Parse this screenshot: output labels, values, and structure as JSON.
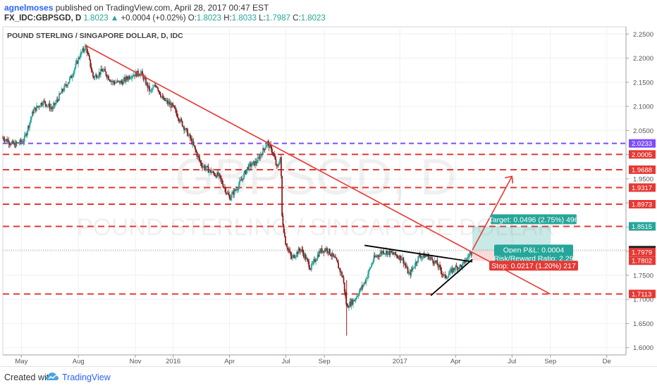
{
  "header": {
    "author": "agnelmoses",
    "published": "published on TradingView.com, April 28, 2017 00:47 EST",
    "symbol": "FX_IDC:GBPSGD, D",
    "last": "1.8023",
    "change_arrow": "▲",
    "change": "+0.0004 (+0.02%)",
    "o_label": "O:",
    "o_value": "1.8023",
    "h_label": "H:",
    "h_value": "1.8033",
    "l_label": "L:",
    "l_value": "1.7987",
    "c_label": "C:",
    "c_value": "1.8023"
  },
  "footer": {
    "created_with": "Created with",
    "brand": "TradingView"
  },
  "chart_data": {
    "type": "candlestick",
    "title": "POUND STERLING / SINGAPORE DOLLAR, D, IDC",
    "watermark_symbol": "GBPSGD, D",
    "watermark_name": "POUND STERLING / SINGAPORE DOLLAR",
    "y_ticks": [
      1.6,
      1.65,
      1.7,
      1.75,
      1.8,
      1.85,
      1.9,
      1.95,
      2.0,
      2.05,
      2.1,
      2.15,
      2.2,
      2.25
    ],
    "y_tick_labels": [
      "1.6000",
      "1.6500",
      "1.7000",
      "1.7500",
      "1.8000",
      "1.8500",
      "1.9000",
      "1.9500",
      "2.0000",
      "2.0500",
      "2.1000",
      "2.1500",
      "2.2000",
      "2.2500"
    ],
    "ylim": [
      1.585,
      2.265
    ],
    "x_range": [
      "2015-04-01",
      "2018-01-01"
    ],
    "x_ticks": [
      {
        "label": "May",
        "date": "2015-05-01"
      },
      {
        "label": "Aug",
        "date": "2015-08-01"
      },
      {
        "label": "Nov",
        "date": "2015-11-01"
      },
      {
        "label": "2016",
        "date": "2016-01-01"
      },
      {
        "label": "Apr",
        "date": "2016-04-01"
      },
      {
        "label": "Jul",
        "date": "2016-07-01"
      },
      {
        "label": "Sep",
        "date": "2016-09-01"
      },
      {
        "label": "2017",
        "date": "2017-01-01"
      },
      {
        "label": "Apr",
        "date": "2017-04-01"
      },
      {
        "label": "Jul",
        "date": "2017-07-01"
      },
      {
        "label": "Sep",
        "date": "2017-09-01"
      },
      {
        "label": "De",
        "date": "2017-12-01"
      }
    ],
    "price_path": [
      [
        "2015-04-01",
        2.035
      ],
      [
        "2015-04-20",
        2.02
      ],
      [
        "2015-05-05",
        2.03
      ],
      [
        "2015-05-20",
        2.09
      ],
      [
        "2015-06-05",
        2.11
      ],
      [
        "2015-06-20",
        2.095
      ],
      [
        "2015-07-05",
        2.13
      ],
      [
        "2015-07-20",
        2.16
      ],
      [
        "2015-08-03",
        2.205
      ],
      [
        "2015-08-13",
        2.225
      ],
      [
        "2015-08-25",
        2.16
      ],
      [
        "2015-09-10",
        2.175
      ],
      [
        "2015-09-25",
        2.15
      ],
      [
        "2015-10-10",
        2.15
      ],
      [
        "2015-10-25",
        2.165
      ],
      [
        "2015-11-10",
        2.17
      ],
      [
        "2015-11-25",
        2.13
      ],
      [
        "2015-12-05",
        2.145
      ],
      [
        "2015-12-15",
        2.115
      ],
      [
        "2015-12-31",
        2.1
      ],
      [
        "2016-01-15",
        2.065
      ],
      [
        "2016-01-30",
        2.03
      ],
      [
        "2016-02-15",
        1.98
      ],
      [
        "2016-03-01",
        1.965
      ],
      [
        "2016-03-15",
        1.955
      ],
      [
        "2016-04-01",
        1.91
      ],
      [
        "2016-04-15",
        1.935
      ],
      [
        "2016-05-01",
        1.975
      ],
      [
        "2016-05-15",
        1.985
      ],
      [
        "2016-06-01",
        2.025
      ],
      [
        "2016-06-10",
        2.005
      ],
      [
        "2016-06-17",
        1.97
      ],
      [
        "2016-06-23",
        2.0
      ],
      [
        "2016-06-24",
        1.88
      ],
      [
        "2016-06-30",
        1.82
      ],
      [
        "2016-07-10",
        1.785
      ],
      [
        "2016-07-25",
        1.805
      ],
      [
        "2016-08-10",
        1.765
      ],
      [
        "2016-08-25",
        1.8
      ],
      [
        "2016-09-05",
        1.805
      ],
      [
        "2016-09-20",
        1.78
      ],
      [
        "2016-10-01",
        1.745
      ],
      [
        "2016-10-07",
        1.685
      ],
      [
        "2016-10-20",
        1.7
      ],
      [
        "2016-11-05",
        1.735
      ],
      [
        "2016-11-20",
        1.785
      ],
      [
        "2016-12-05",
        1.8
      ],
      [
        "2016-12-20",
        1.795
      ],
      [
        "2017-01-05",
        1.785
      ],
      [
        "2017-01-16",
        1.75
      ],
      [
        "2017-02-01",
        1.79
      ],
      [
        "2017-02-15",
        1.79
      ],
      [
        "2017-03-01",
        1.775
      ],
      [
        "2017-03-15",
        1.745
      ],
      [
        "2017-03-30",
        1.765
      ],
      [
        "2017-04-12",
        1.77
      ],
      [
        "2017-04-28",
        1.8023
      ]
    ],
    "annotations": {
      "downtrend_line": {
        "from": [
          "2015-08-13",
          2.226
        ],
        "to": [
          "2017-09-01",
          1.711
        ],
        "color": "#e53935"
      },
      "projection_line": {
        "from": [
          "2017-04-28",
          1.8023
        ],
        "to": [
          "2017-07-01",
          1.955
        ],
        "color": "#e53935"
      },
      "triangle_upper": {
        "from": [
          "2016-11-05",
          1.812
        ],
        "to": [
          "2017-04-28",
          1.778
        ],
        "color": "#000000"
      },
      "triangle_lower": {
        "from": [
          "2017-02-20",
          1.708
        ],
        "to": [
          "2017-04-28",
          1.783
        ],
        "color": "#000000"
      },
      "purple_level": {
        "value": 2.0233,
        "label": "2.0233",
        "color": "#7c4dff"
      },
      "red_levels": [
        {
          "value": 2.0005,
          "label": "2.0005"
        },
        {
          "value": 1.9688,
          "label": "1.9688"
        },
        {
          "value": 1.9317,
          "label": "1.9317"
        },
        {
          "value": 1.8973,
          "label": "1.8973"
        },
        {
          "value": 1.8513,
          "label": "1.8513"
        },
        {
          "value": 1.7113,
          "label": "1.7113"
        }
      ],
      "price_labels": [
        {
          "value": 1.8515,
          "label": "1.8515",
          "color": "#26a69a"
        },
        {
          "value": 1.8023,
          "label": "1.8023",
          "color": "#7f8c9a"
        },
        {
          "value": 1.8019,
          "label": "1.8019",
          "color": "#222222"
        },
        {
          "value": 1.7979,
          "label": "1.7979",
          "color": "#e53935"
        },
        {
          "value": 1.7802,
          "label": "1.7802",
          "color": "#e53935"
        }
      ],
      "position": {
        "start": "2017-04-28",
        "end": "2017-09-01",
        "entry": 1.8019,
        "target": 1.8515,
        "stop": 1.7802,
        "target_text": "Target: 0.0496 (2.75%) 496",
        "pnl_text": "Open P&L: 0.0004",
        "rr_text": "Risk/Reward Ratio: 2.29",
        "stop_text": "Stop: 0.0217 (1.20%) 217"
      }
    },
    "colors": {
      "up": "#26a69a",
      "down": "#8c1d1d",
      "grid": "#eef0f3",
      "accent_green": "#26a69a",
      "accent_red": "#e53935"
    }
  }
}
